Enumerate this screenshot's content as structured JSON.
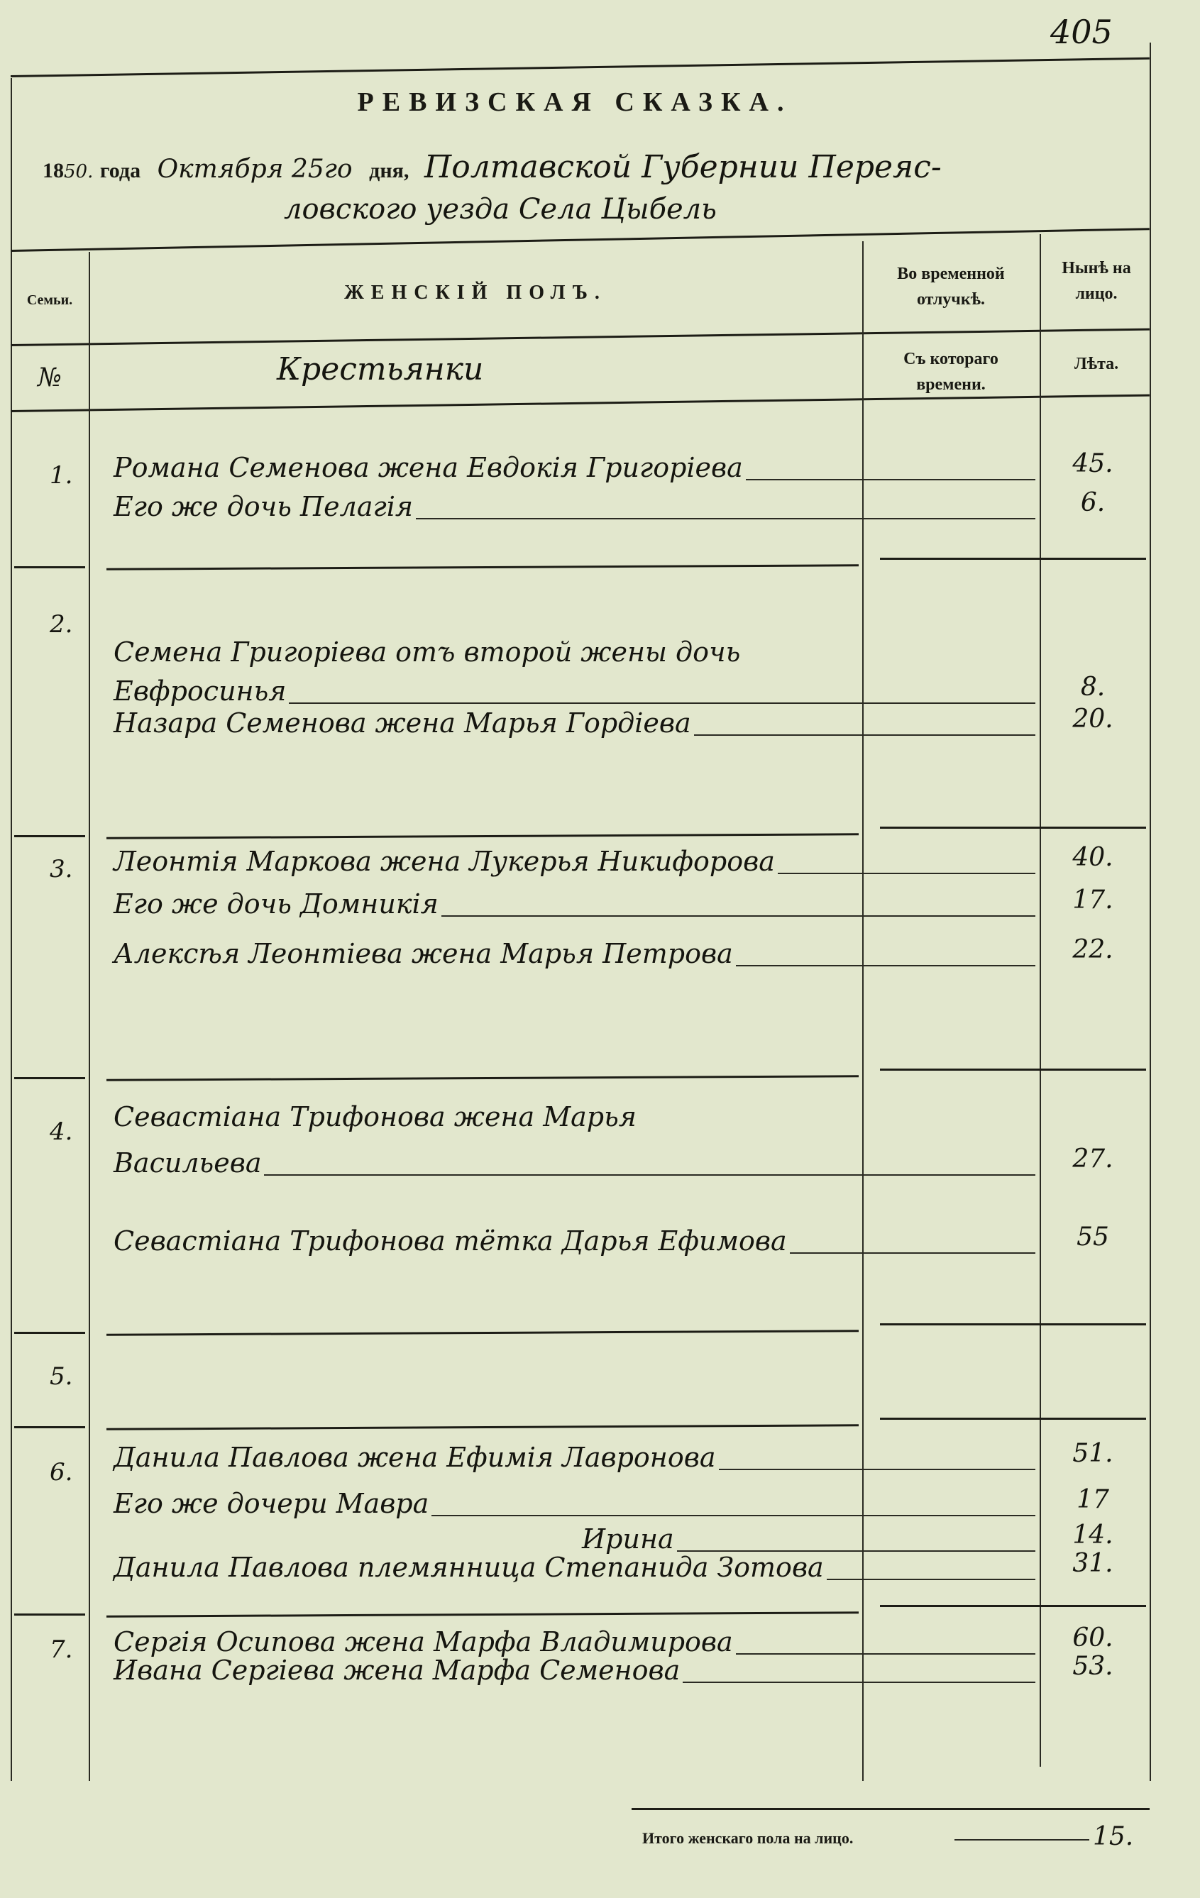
{
  "page_number": "405",
  "title": "РЕВИЗСКАЯ СКАЗКА.",
  "dateline": {
    "year_prefix": "18",
    "year_suffix": "50.",
    "year_word": "года",
    "month_day": "Октября 25го",
    "day_word": "дня,",
    "location_1": "Полтавской Губернии Переяс-",
    "location_2": "ловского уезда Села Цыбель"
  },
  "columns": {
    "family": "Семьи.",
    "female": "ЖЕНСКІЙ ПОЛЪ.",
    "absence": "Во временной отлучкѣ.",
    "present": "Нынѣ на лицо.",
    "number": "№",
    "category": "Крестьянки",
    "since": "Съ котораго времени.",
    "years": "Лѣта."
  },
  "families": [
    {
      "number": "1.",
      "entries": [
        {
          "text": "Романа Семенова жена Евдокія Григорiева",
          "age": "45."
        },
        {
          "text": "Его же дочь Пелагія",
          "age": "6."
        }
      ]
    },
    {
      "number": "2.",
      "entries": [
        {
          "text": "Семена Григорiева отъ второй жены дочь",
          "age": ""
        },
        {
          "text": "Евфросинья",
          "age": "8."
        },
        {
          "text": "Назара Семенова жена Марья Гордiева",
          "age": "20."
        }
      ]
    },
    {
      "number": "3.",
      "entries": [
        {
          "text": "Леонтія Маркова жена Лукерья Никифорова",
          "age": "40."
        },
        {
          "text": "Его же дочь Домникія",
          "age": "17."
        },
        {
          "text": "Алексѣя Леонтiева жена Марья Петрова",
          "age": "22."
        }
      ]
    },
    {
      "number": "4.",
      "entries": [
        {
          "text": "Севастiана Трифонова жена Марья",
          "age": ""
        },
        {
          "text": "Васильева",
          "age": "27."
        },
        {
          "text": "Севастiана Трифонова тётка Дарья Ефимова",
          "age": "55"
        }
      ]
    },
    {
      "number": "5.",
      "entries": []
    },
    {
      "number": "6.",
      "entries": [
        {
          "text": "Данила Павлова жена Ефимія Лавронова",
          "age": "51."
        },
        {
          "text": "Его же дочери Мавра",
          "age": "17"
        },
        {
          "text": "Ирина",
          "age": "14."
        },
        {
          "text": "Данила Павлова племянница Степанида Зотова",
          "age": "31."
        }
      ]
    },
    {
      "number": "7.",
      "entries": [
        {
          "text": "Сергія Осипова жена Марфа Владимирова",
          "age": "60."
        },
        {
          "text": "Ивана Сергiева жена Марфа Семенова",
          "age": "53."
        }
      ]
    }
  ],
  "total": {
    "label": "Итого женскаго пола на лицо.",
    "value": "15."
  }
}
